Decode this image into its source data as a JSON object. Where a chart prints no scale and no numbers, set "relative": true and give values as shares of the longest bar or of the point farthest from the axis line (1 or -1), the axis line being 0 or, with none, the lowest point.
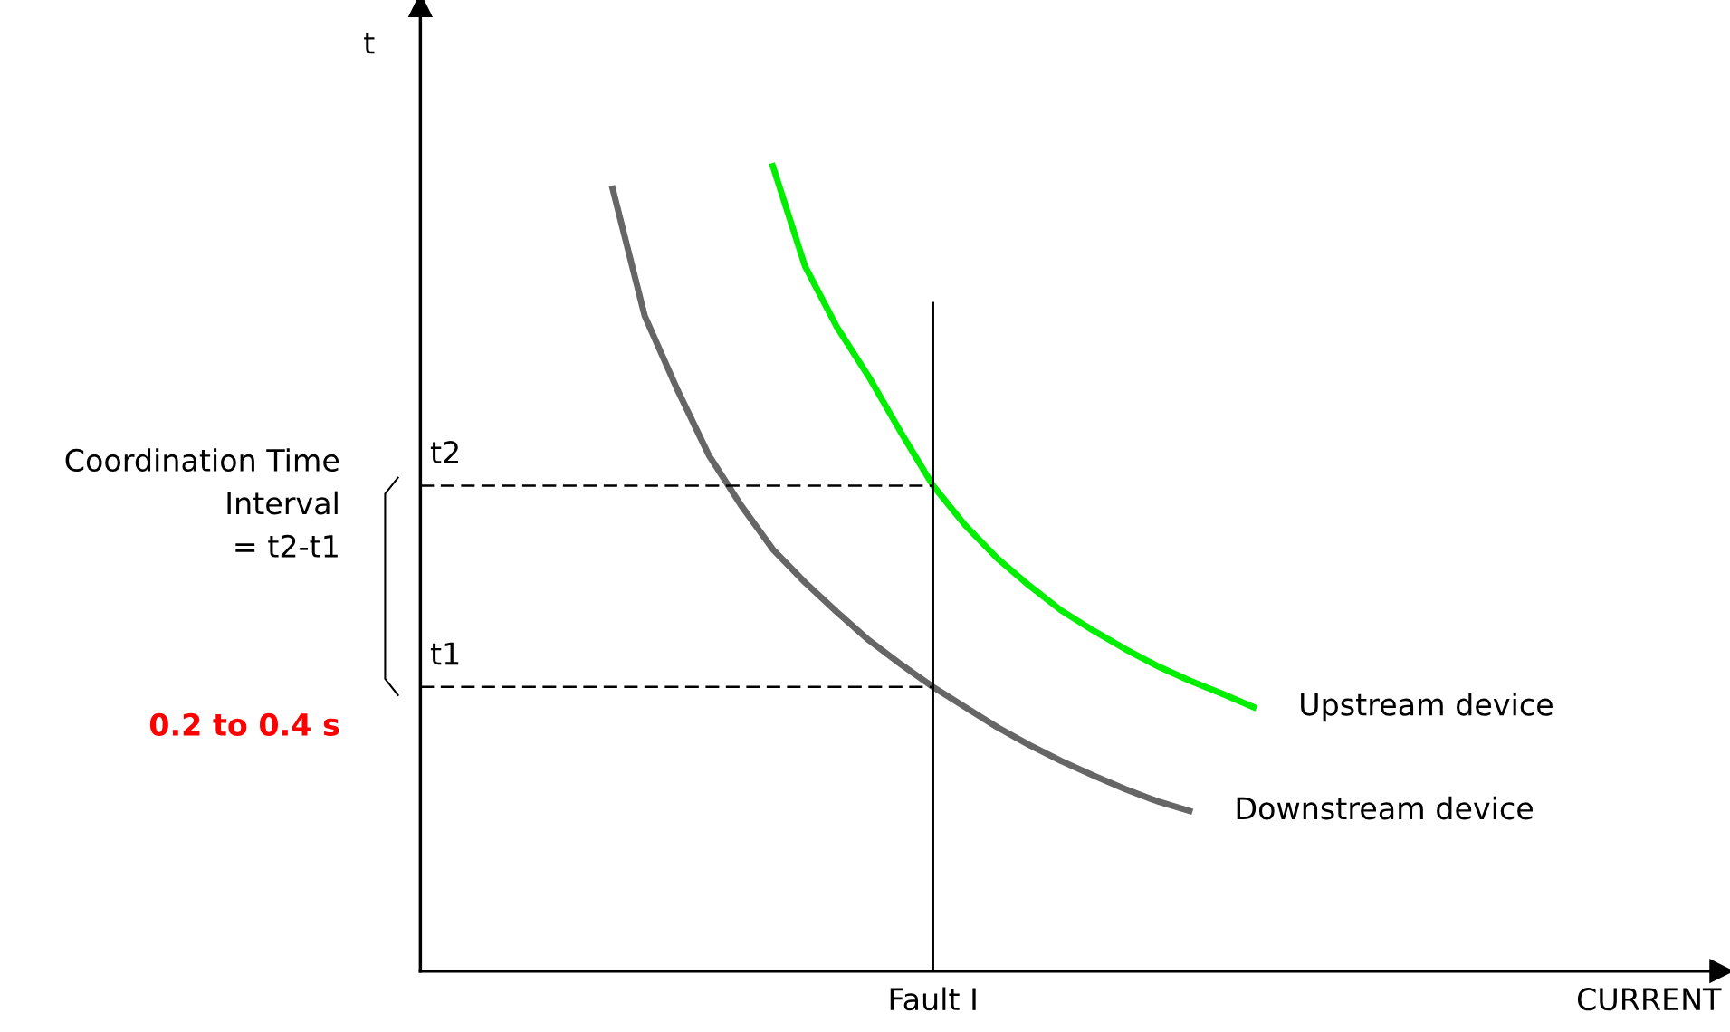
{
  "chart_data": {
    "type": "line",
    "relative": true,
    "ylabel": "t",
    "xlabel": "CURRENT",
    "legend": false,
    "marker": "none",
    "categories": [
      null,
      null,
      null,
      null,
      null,
      null,
      null,
      null,
      null,
      null,
      null,
      null,
      null,
      null,
      null,
      null,
      null,
      null,
      null,
      null,
      null,
      null,
      null,
      null,
      null,
      null,
      null,
      null,
      null,
      null,
      null,
      null,
      null,
      null,
      null,
      null,
      null,
      null,
      null,
      null,
      null
    ],
    "series": [
      {
        "name": "Upstream device",
        "color": "#00ee00",
        "values": [
          null,
          null,
          null,
          null,
          null,
          null,
          null,
          null,
          null,
          null,
          null,
          1.0,
          0.876,
          0.8,
          0.738,
          0.669,
          0.603,
          0.554,
          0.513,
          0.479,
          0.448,
          0.423,
          0.4,
          0.379,
          0.361,
          0.345,
          0.328,
          null,
          null,
          null,
          null,
          null,
          null,
          null,
          null,
          null,
          null,
          null,
          null,
          null,
          null
        ]
      },
      {
        "name": "Downstream device",
        "color": "#666666",
        "values": [
          null,
          null,
          null,
          null,
          null,
          null,
          0.972,
          0.814,
          0.724,
          0.641,
          0.579,
          0.524,
          0.483,
          0.446,
          0.411,
          0.381,
          0.353,
          0.328,
          0.303,
          0.281,
          0.261,
          0.243,
          0.226,
          0.211,
          0.199,
          null,
          null,
          null,
          null,
          null,
          null,
          null,
          null,
          null,
          null,
          null,
          null,
          null,
          null,
          null,
          null
        ]
      }
    ],
    "ref_lines": [
      {
        "axis": "y",
        "value": 0.603,
        "label": "t2",
        "color": "#000000",
        "line_style": "dashed"
      },
      {
        "axis": "y",
        "value": 0.353,
        "label": "t1",
        "color": "#000000",
        "line_style": "dashed"
      }
    ],
    "annotations": [
      "Coordination Time\nInterval\n= t2-t1",
      "0.2 to 0.4 s",
      "Fault I"
    ]
  }
}
